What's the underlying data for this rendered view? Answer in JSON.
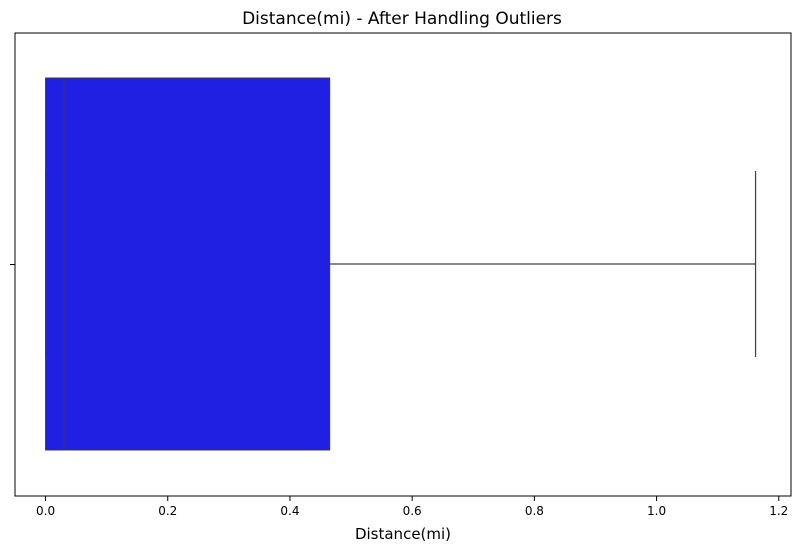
{
  "chart_data": {
    "type": "box",
    "title": "Distance(mi) - After Handling Outliers",
    "xlabel": "Distance(mi)",
    "ylabel": "",
    "xlim": [
      -0.05,
      1.22
    ],
    "x_ticks": [
      0.0,
      0.2,
      0.4,
      0.6,
      0.8,
      1.0,
      1.2
    ],
    "x_tick_labels": [
      "0.0",
      "0.2",
      "0.4",
      "0.6",
      "0.8",
      "1.0",
      "1.2"
    ],
    "box": {
      "whisker_low": 0.0,
      "q1": 0.0,
      "median": 0.03,
      "q3": 0.465,
      "whisker_high": 1.162
    },
    "orientation": "horizontal",
    "grid": false,
    "colors": {
      "box_fill": "#2020e3",
      "box_edge": "#3d3d3d",
      "whisker": "#3d3d3d"
    }
  }
}
